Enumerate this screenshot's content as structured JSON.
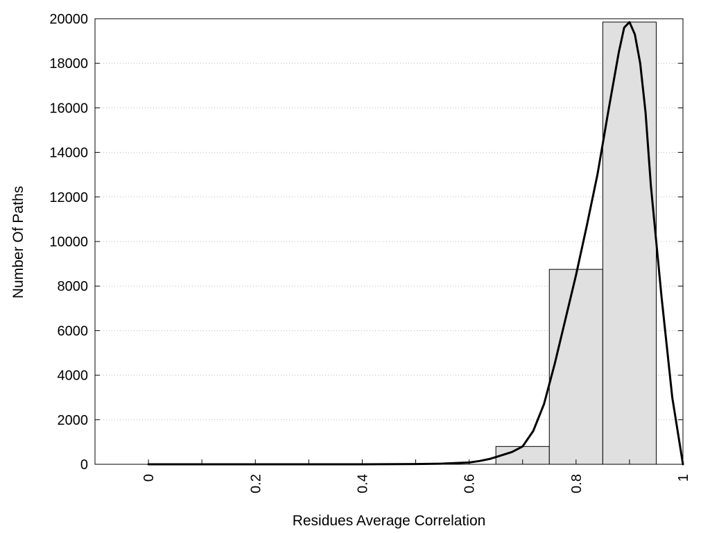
{
  "chart_data": {
    "type": "bar",
    "title": "",
    "xlabel": "Residues Average Correlation",
    "ylabel": "Number Of Paths",
    "xlim": [
      -0.1,
      1.0
    ],
    "ylim": [
      0,
      20000
    ],
    "grid": true,
    "x_ticks": [
      0,
      0.2,
      0.4,
      0.6,
      0.8,
      1
    ],
    "x_tick_labels": [
      "0",
      "0.2",
      "0.4",
      "0.6",
      "0.8",
      "1"
    ],
    "x_minor_ticks": [
      0.1,
      0.3,
      0.5,
      0.7,
      0.9
    ],
    "y_ticks": [
      0,
      2000,
      4000,
      6000,
      8000,
      10000,
      12000,
      14000,
      16000,
      18000,
      20000
    ],
    "y_tick_labels": [
      "0",
      "2000",
      "4000",
      "6000",
      "8000",
      "10000",
      "12000",
      "14000",
      "16000",
      "18000",
      "20000"
    ],
    "bars": [
      {
        "x0": 0.65,
        "x1": 0.75,
        "value": 800
      },
      {
        "x0": 0.75,
        "x1": 0.85,
        "value": 8750
      },
      {
        "x0": 0.85,
        "x1": 0.95,
        "value": 19850
      }
    ],
    "bar_fill": "#e0e0e0",
    "bar_stroke": "#000000",
    "curve": {
      "color": "#000000",
      "x": [
        0,
        0.1,
        0.2,
        0.3,
        0.4,
        0.5,
        0.55,
        0.6,
        0.62,
        0.64,
        0.66,
        0.68,
        0.7,
        0.72,
        0.74,
        0.76,
        0.78,
        0.8,
        0.82,
        0.84,
        0.86,
        0.88,
        0.89,
        0.9,
        0.91,
        0.92,
        0.93,
        0.94,
        0.96,
        0.98,
        1.0
      ],
      "y": [
        0,
        0,
        0,
        0,
        0,
        10,
        30,
        80,
        150,
        250,
        400,
        550,
        800,
        1500,
        2700,
        4500,
        6500,
        8500,
        10700,
        13000,
        15800,
        18500,
        19600,
        19850,
        19300,
        18000,
        15800,
        12500,
        7500,
        3000,
        0
      ]
    }
  }
}
